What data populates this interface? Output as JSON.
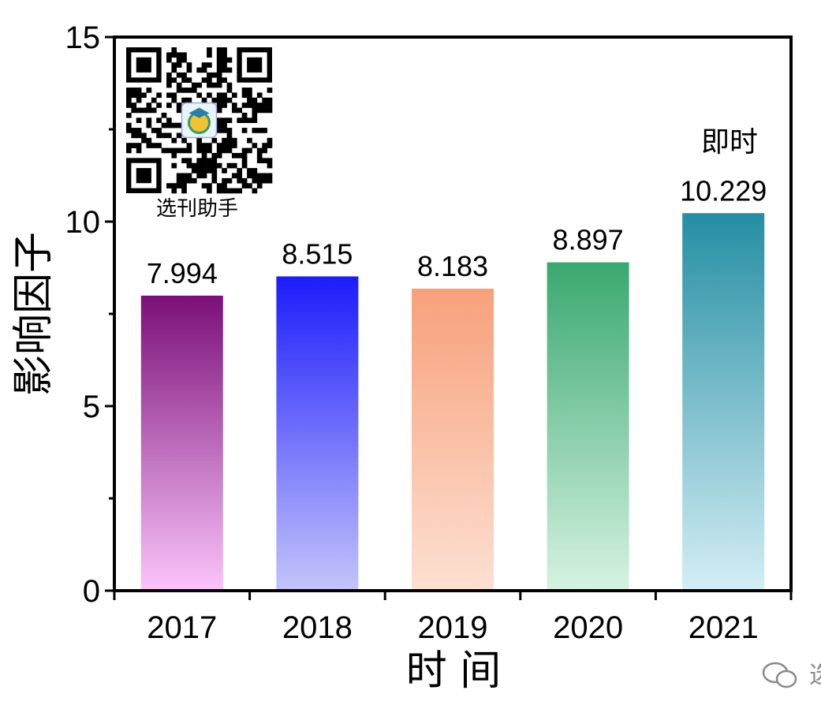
{
  "chart_data": {
    "type": "bar",
    "categories": [
      "2017",
      "2018",
      "2019",
      "2020",
      "2021"
    ],
    "values": [
      7.994,
      8.515,
      8.183,
      8.897,
      10.229
    ],
    "value_labels": [
      "7.994",
      "8.515",
      "8.183",
      "8.897",
      "10.229"
    ],
    "ylabel": "影响因子",
    "xlabel": "时 间",
    "ylim": [
      0,
      15
    ],
    "yticks": [
      "0",
      "5",
      "10",
      "15"
    ],
    "grid": false,
    "bar_colors": [
      {
        "top": "#7a1078",
        "bottom": "#fbc4fb"
      },
      {
        "top": "#1c1cfb",
        "bottom": "#c4c4fb"
      },
      {
        "top": "#f7a07a",
        "bottom": "#fde0d2"
      },
      {
        "top": "#3aa870",
        "bottom": "#d6f2e2"
      },
      {
        "top": "#258ea3",
        "bottom": "#d4eef5"
      }
    ],
    "annotation": "即时"
  },
  "watermark": {
    "qr_caption": "选刊助手",
    "corner_text": "选"
  }
}
